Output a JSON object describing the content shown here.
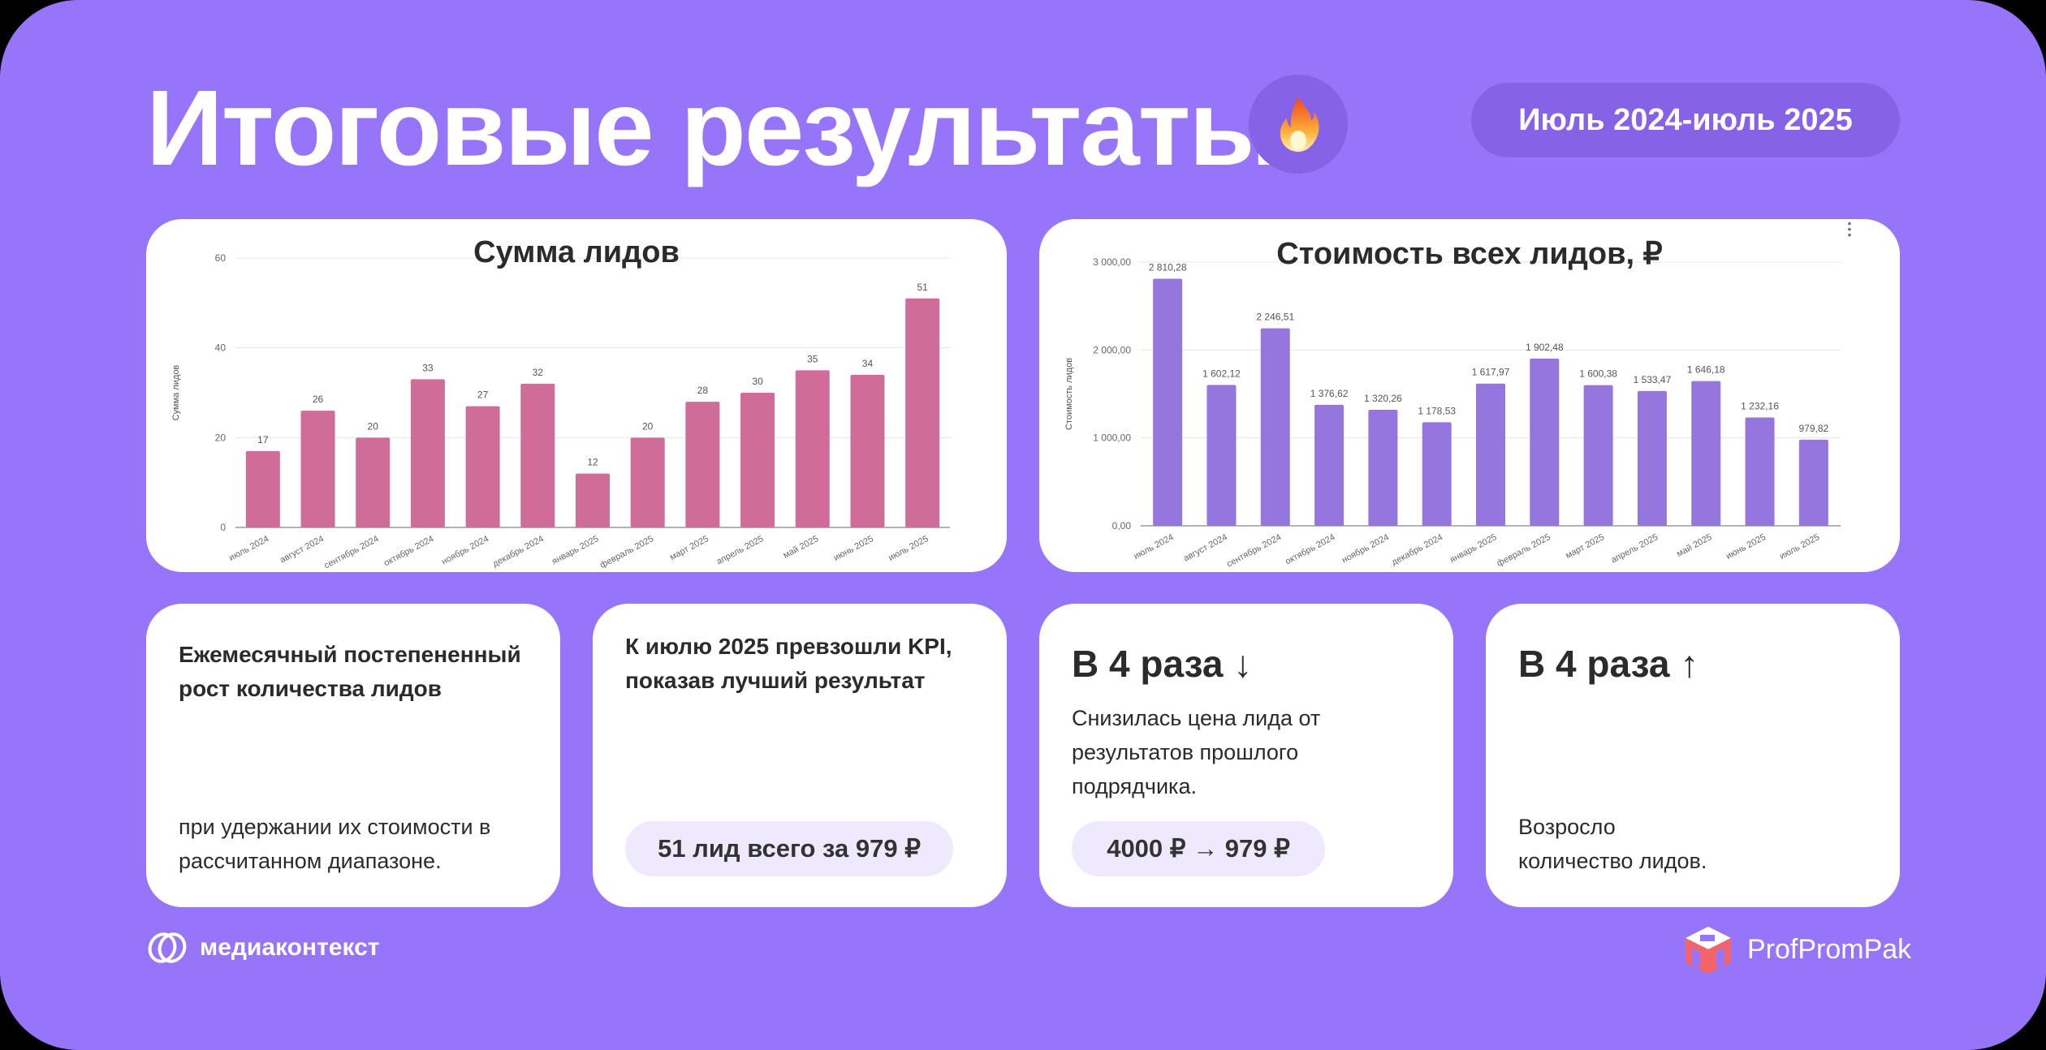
{
  "header": {
    "title": "Итоговые результаты",
    "title_icon": "fire-icon",
    "period": "Июль 2024-июль 2025"
  },
  "colors": {
    "background": "#9775FA",
    "pill_dark": "#8562E6",
    "leads_bar": "#D06C98",
    "cost_bar": "#9575DE",
    "pill_light": "#EEE9FD",
    "text_dark": "#2B2B2B"
  },
  "chart_data": [
    {
      "type": "bar",
      "title": "Сумма лидов",
      "xlabel": "",
      "ylabel": "Сумма лидов",
      "categories": [
        "июль 2024",
        "август 2024",
        "сентябрь 2024",
        "октябрь 2024",
        "ноябрь 2024",
        "декабрь 2024",
        "январь 2025",
        "февраль 2025",
        "март 2025",
        "апрель 2025",
        "май 2025",
        "июнь 2025",
        "июль 2025"
      ],
      "values": [
        17,
        26,
        20,
        33,
        27,
        32,
        12,
        20,
        28,
        30,
        35,
        34,
        51
      ],
      "value_labels": [
        "17",
        "26",
        "20",
        "33",
        "27",
        "32",
        "12",
        "20",
        "28",
        "30",
        "35",
        "34",
        "51"
      ],
      "yticks": [
        "0",
        "20",
        "40",
        "60"
      ],
      "ylim": [
        0,
        60
      ],
      "grid": true,
      "legend": "none",
      "color": "#D06C98"
    },
    {
      "type": "bar",
      "title": "Стоимость всех лидов, ₽",
      "xlabel": "",
      "ylabel": "Стоимость лидов",
      "categories": [
        "июль 2024",
        "август 2024",
        "сентябрь 2024",
        "октябрь 2024",
        "ноябрь 2024",
        "декабрь 2024",
        "январь 2025",
        "февраль 2025",
        "март 2025",
        "апрель 2025",
        "май 2025",
        "июнь 2025",
        "июль 2025"
      ],
      "values": [
        2810.28,
        1602.12,
        2246.51,
        1376.62,
        1320.26,
        1178.53,
        1617.97,
        1902.48,
        1600.38,
        1533.47,
        1646.18,
        1232.16,
        979.82
      ],
      "value_labels": [
        "2 810,28",
        "1 602,12",
        "2 246,51",
        "1 376,62",
        "1 320,26",
        "1 178,53",
        "1 617,97",
        "1 902,48",
        "1 600,38",
        "1 533,47",
        "1 646,18",
        "1 232,16",
        "979,82"
      ],
      "yticks": [
        "0,00",
        "1 000,00",
        "2 000,00",
        "3 000,00"
      ],
      "ylim": [
        0,
        3000
      ],
      "grid": true,
      "legend": "none",
      "color": "#9575DE"
    }
  ],
  "cards": [
    {
      "heading": "Ежемесячный постепененный рост количества лидов",
      "body": "при удержании их стоимости в рассчитанном диапазоне."
    },
    {
      "heading": "К июлю 2025 превзошли KPI, показав лучший результат",
      "pill": "51 лид всего за 979 ₽"
    },
    {
      "heading": "В 4 раза",
      "heading_icon": "arrow-down-icon",
      "arrow": "↓",
      "body": "Снизилась цена лида от результатов прошлого подрядчика.",
      "pill": "4000 ₽ → 979 ₽"
    },
    {
      "heading": "В 4 раза",
      "heading_icon": "arrow-up-icon",
      "arrow": "↑",
      "body": "Возросло количество лидов."
    }
  ],
  "footer": {
    "left_brand": "медиаконтекст",
    "right_brand": "ProfPromPak"
  }
}
